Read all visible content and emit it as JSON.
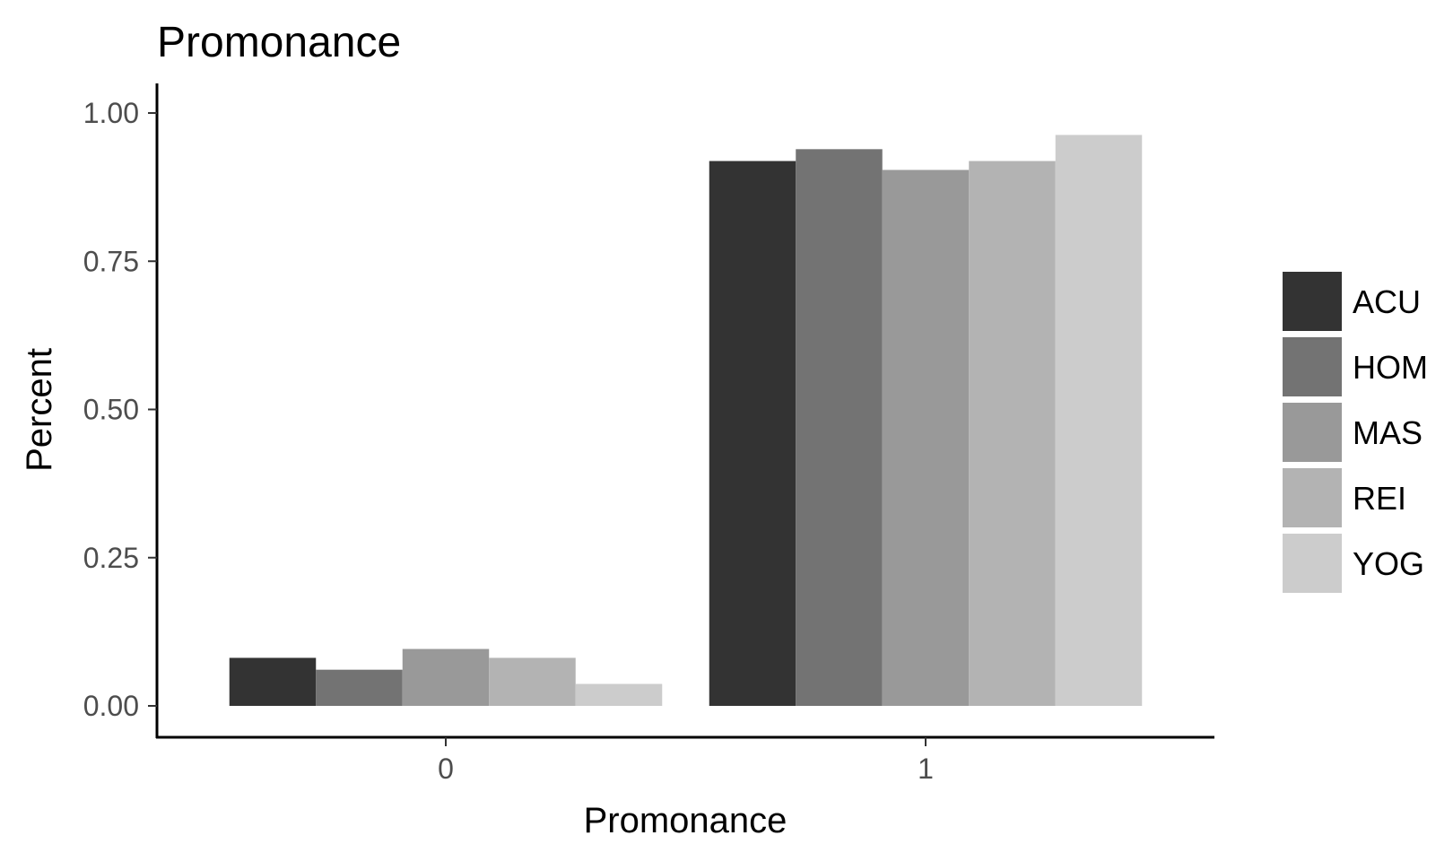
{
  "chart_data": {
    "type": "bar",
    "title": "Promonance",
    "xlabel": "Promonance",
    "ylabel": "Percent",
    "categories": [
      "0",
      "1"
    ],
    "ylim": [
      -0.05,
      1.05
    ],
    "yticks": [
      0.0,
      0.25,
      0.5,
      0.75,
      1.0
    ],
    "ytick_labels": [
      "0.00",
      "0.25",
      "0.50",
      "0.75",
      "1.00"
    ],
    "grid": false,
    "legend_position": "right",
    "series": [
      {
        "name": "ACU",
        "color": "#333333",
        "values": [
          0.081,
          0.919
        ]
      },
      {
        "name": "HOM",
        "color": "#737373",
        "values": [
          0.061,
          0.939
        ]
      },
      {
        "name": "MAS",
        "color": "#999999",
        "values": [
          0.096,
          0.904
        ]
      },
      {
        "name": "REI",
        "color": "#b3b3b3",
        "values": [
          0.081,
          0.919
        ]
      },
      {
        "name": "YOG",
        "color": "#cccccc",
        "values": [
          0.037,
          0.963
        ]
      }
    ]
  }
}
